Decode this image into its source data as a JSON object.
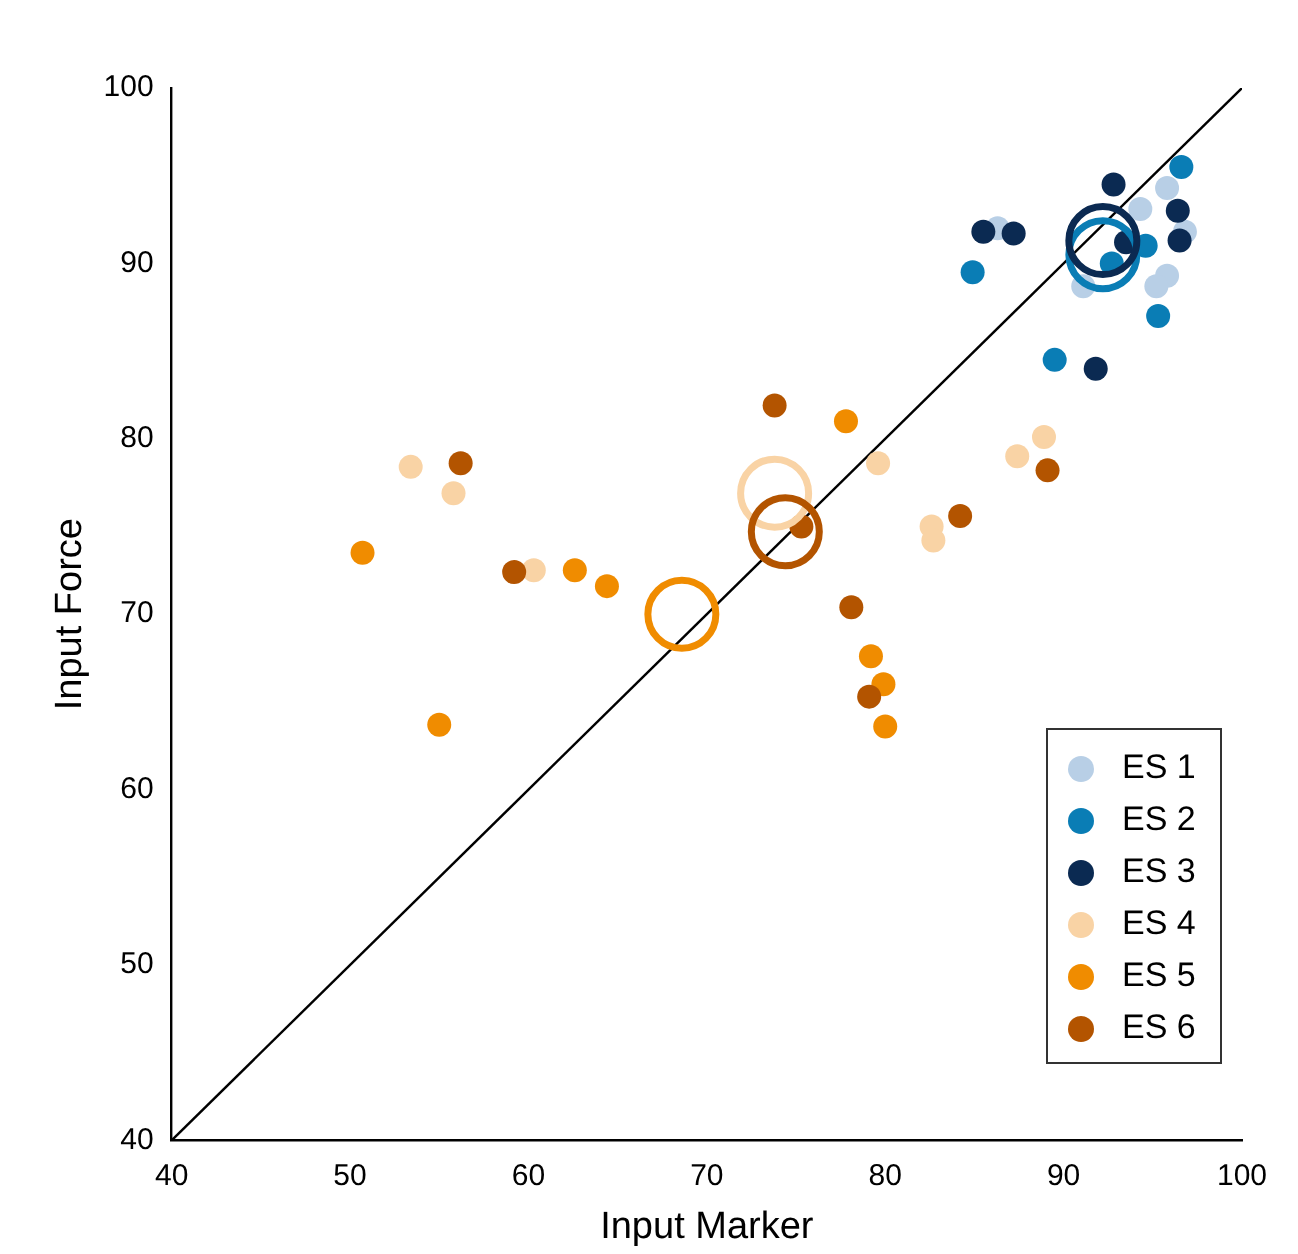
{
  "chart_data": {
    "type": "scatter",
    "xlabel": "Input Marker",
    "ylabel": "Input Force",
    "xlim": [
      40,
      100
    ],
    "ylim": [
      40,
      100
    ],
    "xticks": [
      40,
      50,
      60,
      70,
      80,
      90,
      100
    ],
    "yticks": [
      40,
      50,
      60,
      70,
      80,
      90,
      100
    ],
    "grid": false,
    "legend": "bottom right",
    "marker": "circle",
    "series": [
      {
        "type": "line",
        "marker": "none",
        "color": "#000000",
        "x": [
          40,
          100
        ],
        "values": [
          40,
          100
        ]
      },
      {
        "name": "ES 1",
        "color": "#b8cfe6",
        "x": [
          86.3,
          91.1,
          94.3,
          95.8,
          96.8,
          95.8,
          95.2
        ],
        "values": [
          92,
          88.7,
          93.1,
          94.3,
          91.8,
          89.3,
          88.7
        ]
      },
      {
        "name": "ES 2",
        "color": "#0a7db5",
        "x": [
          96.6,
          84.9,
          89.5,
          95.3,
          92.7,
          94.6
        ],
        "values": [
          95.5,
          89.5,
          84.5,
          87,
          90,
          91
        ]
      },
      {
        "name": "ES 3",
        "color": "#0b2a52",
        "x": [
          92.8,
          85.5,
          87.2,
          96.4,
          96.5,
          93.5,
          91.8
        ],
        "values": [
          94.5,
          91.8,
          91.7,
          93,
          91.3,
          91.2,
          84
        ]
      },
      {
        "name": "ES 4",
        "color": "#f9d3a5",
        "x": [
          53.4,
          55.8,
          60.3,
          79.6,
          88.9,
          87.4,
          82.6,
          82.7
        ],
        "values": [
          78.4,
          76.9,
          72.5,
          78.6,
          80.1,
          79,
          75,
          74.2
        ]
      },
      {
        "name": "ES 5",
        "color": "#f08c00",
        "x": [
          50.7,
          55,
          62.6,
          64.4,
          77.8,
          79.2,
          79.9,
          80
        ],
        "values": [
          73.5,
          63.7,
          72.5,
          71.6,
          81,
          67.6,
          66,
          63.6
        ]
      },
      {
        "name": "ES 6",
        "color": "#b35400",
        "x": [
          56.2,
          59.2,
          73.8,
          75.3,
          78.1,
          79.1,
          84.2,
          89.1
        ],
        "values": [
          78.6,
          72.4,
          81.9,
          75,
          70.4,
          65.3,
          75.6,
          78.2
        ]
      },
      {
        "type": "bubble",
        "color": "#0a7db5",
        "x": [
          92.2
        ],
        "values": [
          90.5
        ],
        "sizes": [
          1
        ]
      },
      {
        "type": "bubble",
        "color": "#0b2a52",
        "x": [
          92.2
        ],
        "values": [
          91.3
        ],
        "sizes": [
          1
        ]
      },
      {
        "type": "bubble",
        "color": "#f9d3a5",
        "x": [
          73.8
        ],
        "values": [
          76.9
        ],
        "sizes": [
          1
        ]
      },
      {
        "type": "bubble",
        "color": "#f08c00",
        "x": [
          68.6
        ],
        "values": [
          70
        ],
        "sizes": [
          1
        ]
      },
      {
        "type": "bubble",
        "color": "#b35400",
        "x": [
          74.4
        ],
        "values": [
          74.7
        ],
        "sizes": [
          1
        ]
      }
    ]
  }
}
